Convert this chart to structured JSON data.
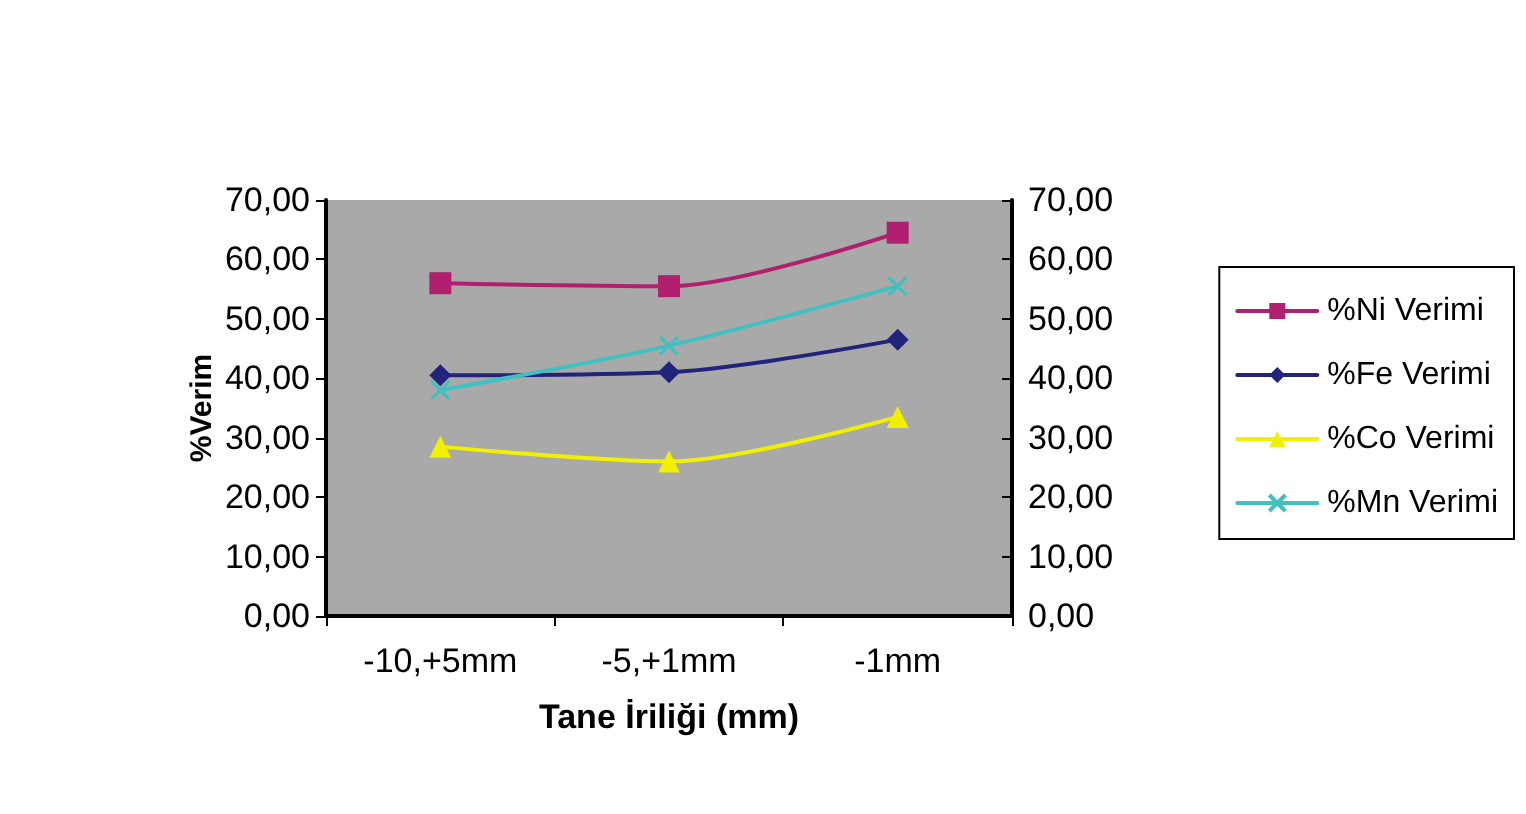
{
  "chart_data": {
    "type": "line",
    "xlabel": "Tane İriliği (mm)",
    "ylabel": "%Verim",
    "categories": [
      "-10,+5mm",
      "-5,+1mm",
      "-1mm"
    ],
    "series": [
      {
        "name": "%Ni Verimi",
        "color": "#b0206e",
        "marker": "square",
        "values": [
          56,
          55.5,
          64.5
        ]
      },
      {
        "name": "%Fe Verimi",
        "color": "#22237a",
        "marker": "diamond",
        "values": [
          40.5,
          41,
          46.5
        ]
      },
      {
        "name": "%Co Verimi",
        "color": "#f0f000",
        "marker": "triangle",
        "values": [
          28.5,
          26,
          33.5
        ]
      },
      {
        "name": "%Mn Verimi",
        "color": "#40c0c0",
        "marker": "cross",
        "values": [
          38,
          45.5,
          55.5
        ]
      }
    ],
    "ylim": [
      0,
      70
    ],
    "yticks": [
      {
        "value": 0,
        "label": "0,00"
      },
      {
        "value": 10,
        "label": "10,00"
      },
      {
        "value": 20,
        "label": "20,00"
      },
      {
        "value": 30,
        "label": "30,00"
      },
      {
        "value": 40,
        "label": "40,00"
      },
      {
        "value": 50,
        "label": "50,00"
      },
      {
        "value": 60,
        "label": "60,00"
      },
      {
        "value": 70,
        "label": "70,00"
      }
    ],
    "y2lim": [
      0,
      70
    ],
    "y2ticks": [
      {
        "value": 0,
        "label": "0,00"
      },
      {
        "value": 10,
        "label": "10,00"
      },
      {
        "value": 20,
        "label": "20,00"
      },
      {
        "value": 30,
        "label": "30,00"
      },
      {
        "value": 40,
        "label": "40,00"
      },
      {
        "value": 50,
        "label": "50,00"
      },
      {
        "value": 60,
        "label": "60,00"
      },
      {
        "value": 70,
        "label": "70,00"
      }
    ],
    "grid": false,
    "legend": "right",
    "line_style": "solid"
  }
}
